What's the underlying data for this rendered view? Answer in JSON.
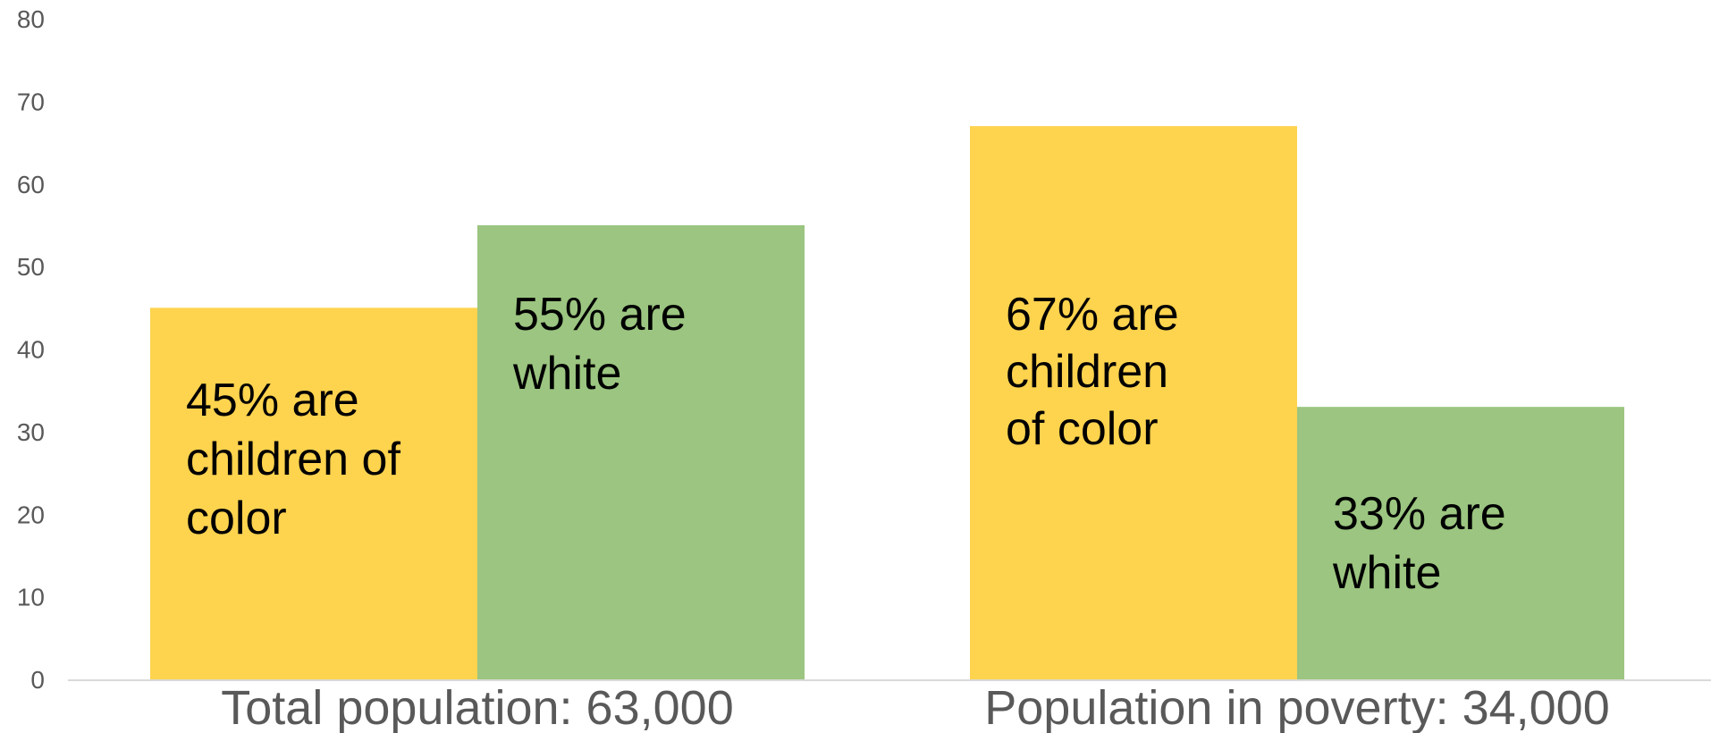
{
  "chart_data": {
    "type": "bar",
    "categories": [
      "Total population: 63,000",
      "Population in poverty: 34,000"
    ],
    "series": [
      {
        "color": "#FED34E",
        "values": [
          45,
          67
        ],
        "labels": [
          [
            "45% are",
            "children of",
            "color"
          ],
          [
            "67% are",
            "children",
            "of color"
          ]
        ]
      },
      {
        "color": "#9BC580",
        "values": [
          55,
          33
        ],
        "labels": [
          [
            "55% are",
            "white"
          ],
          [
            "33% are",
            "white"
          ]
        ]
      }
    ],
    "ylim": [
      0,
      80
    ],
    "yticks": [
      0,
      10,
      20,
      30,
      40,
      50,
      60,
      70,
      80
    ],
    "grid": false,
    "legend": "none",
    "axis_color": "#D9D9D9"
  }
}
